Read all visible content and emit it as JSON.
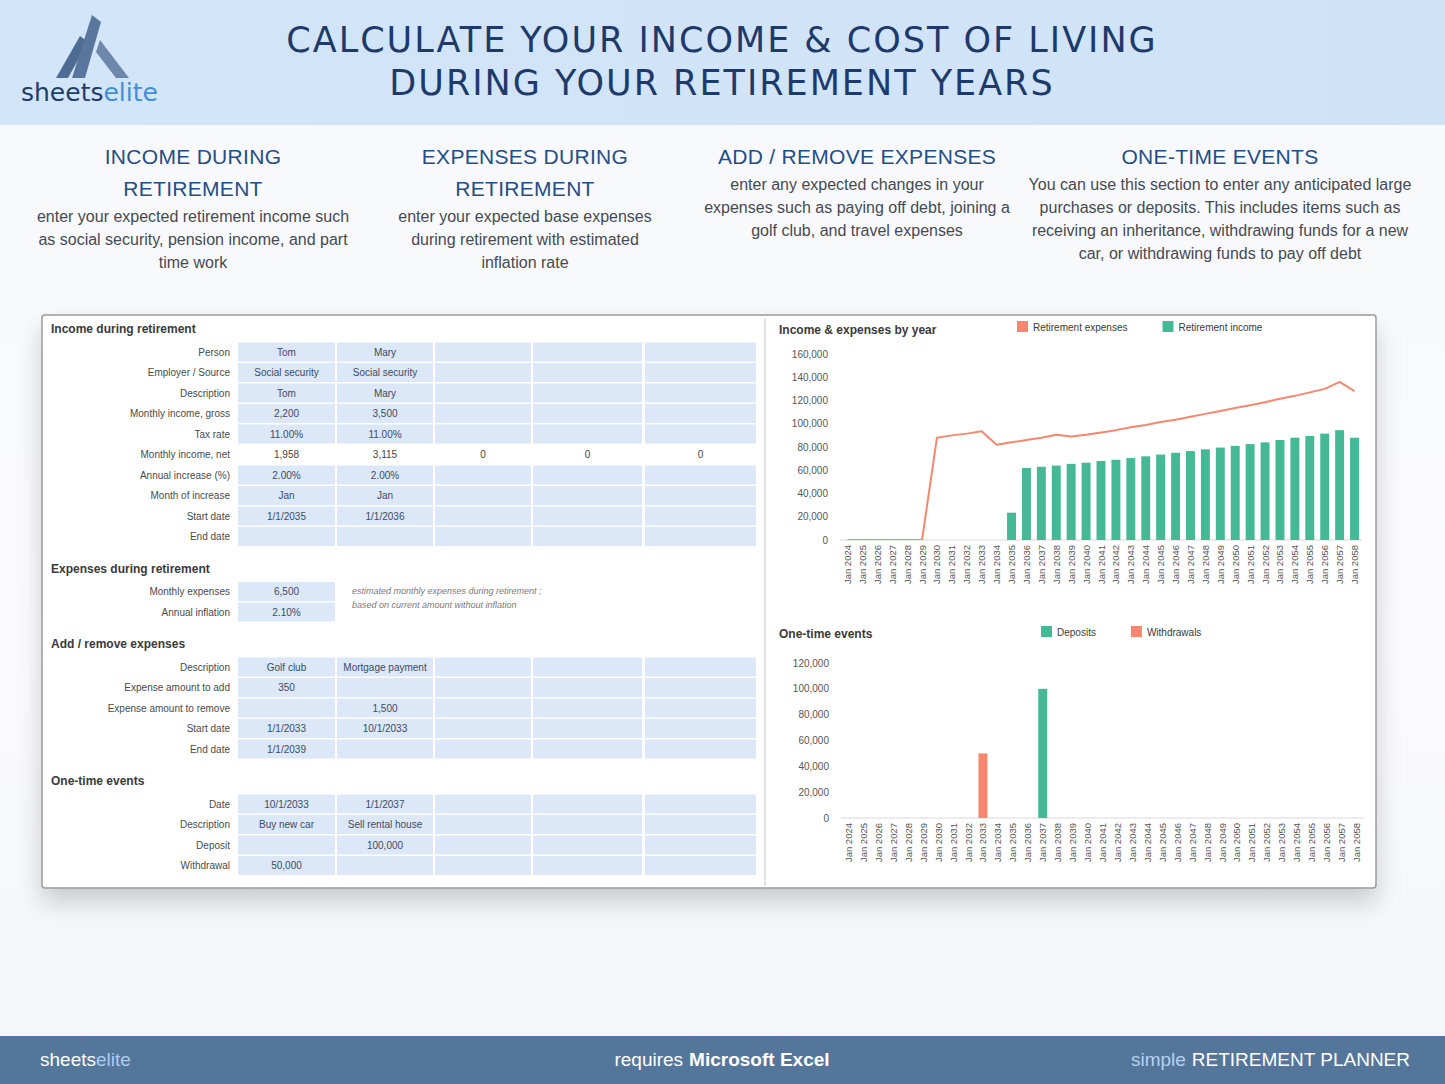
{
  "header": {
    "brand": {
      "first": "sheets",
      "second": "elite"
    },
    "title": [
      "CALCULATE YOUR INCOME & COST OF LIVING",
      "DURING YOUR RETIREMENT YEARS"
    ]
  },
  "features": [
    {
      "title": "INCOME DURING RETIREMENT",
      "text": "enter your expected retirement income such as social security, pension income, and part time work"
    },
    {
      "title": "EXPENSES DURING RETIREMENT",
      "text": "enter your expected base expenses during retirement with estimated inflation rate"
    },
    {
      "title": "ADD / REMOVE EXPENSES",
      "text": "enter any expected changes in your expenses such as paying off debt, joining a golf club, and travel expenses"
    },
    {
      "title": "ONE-TIME EVENTS",
      "text": "You can use this section to enter any anticipated large purchases or deposits. This includes items such as receiving an inheritance, withdrawing funds for a new car, or withdrawing funds to pay off debt"
    }
  ],
  "sheet": {
    "sections": [
      {
        "title": "Income during retirement",
        "rows": [
          {
            "label": "Person",
            "cells": [
              "Tom",
              "Mary",
              null,
              null,
              null
            ]
          },
          {
            "label": "Employer / Source",
            "cells": [
              "Social security",
              "Social security",
              null,
              null,
              null
            ]
          },
          {
            "label": "Description",
            "cells": [
              "Tom",
              "Mary",
              null,
              null,
              null
            ]
          },
          {
            "label": "Monthly income, gross",
            "cells": [
              "2,200",
              "3,500",
              null,
              null,
              null
            ]
          },
          {
            "label": "Tax rate",
            "cells": [
              "11.00%",
              "11.00%",
              null,
              null,
              null
            ]
          },
          {
            "label": "Monthly income, net",
            "computed": true,
            "cells": [
              "1,958",
              "3,115",
              "0",
              "0",
              "0"
            ]
          },
          {
            "label": "Annual increase (%)",
            "cells": [
              "2.00%",
              "2.00%",
              null,
              null,
              null
            ]
          },
          {
            "label": "Month of increase",
            "cells": [
              "Jan",
              "Jan",
              null,
              null,
              null
            ]
          },
          {
            "label": "Start date",
            "cells": [
              "1/1/2035",
              "1/1/2036",
              null,
              null,
              null
            ]
          },
          {
            "label": "End date",
            "cells": [
              null,
              null,
              null,
              null,
              null
            ]
          }
        ]
      },
      {
        "title": "Expenses during retirement",
        "note": [
          "estimated monthly expenses during retirement ;",
          "based on current amount without inflation"
        ],
        "rows": [
          {
            "label": "Monthly expenses",
            "cells": [
              "6,500"
            ]
          },
          {
            "label": "Annual inflation",
            "cells": [
              "2.10%"
            ]
          }
        ]
      },
      {
        "title": "Add / remove expenses",
        "rows": [
          {
            "label": "Description",
            "cells": [
              "Golf club",
              "Mortgage payment",
              null,
              null,
              null
            ]
          },
          {
            "label": "Expense amount to add",
            "cells": [
              "350",
              null,
              null,
              null,
              null
            ]
          },
          {
            "label": "Expense amount to remove",
            "cells": [
              null,
              "1,500",
              null,
              null,
              null
            ]
          },
          {
            "label": "Start date",
            "cells": [
              "1/1/2033",
              "10/1/2033",
              null,
              null,
              null
            ]
          },
          {
            "label": "End date",
            "cells": [
              "1/1/2039",
              null,
              null,
              null,
              null
            ]
          }
        ]
      },
      {
        "title": "One-time events",
        "rows": [
          {
            "label": "Date",
            "cells": [
              "10/1/2033",
              "1/1/2037",
              null,
              null,
              null
            ]
          },
          {
            "label": "Description",
            "cells": [
              "Buy new car",
              "Sell rental house",
              null,
              null,
              null
            ]
          },
          {
            "label": "Deposit",
            "cells": [
              null,
              "100,000",
              null,
              null,
              null
            ]
          },
          {
            "label": "Withdrawal",
            "cells": [
              "50,000",
              null,
              null,
              null,
              null
            ]
          }
        ]
      }
    ]
  },
  "chart_data": [
    {
      "type": "bar",
      "title": "Income & expenses by year",
      "categories": [
        "Jan 2024",
        "Jan 2025",
        "Jan 2026",
        "Jan 2027",
        "Jan 2028",
        "Jan 2029",
        "Jan 2030",
        "Jan 2031",
        "Jan 2032",
        "Jan 2033",
        "Jan 2034",
        "Jan 2035",
        "Jan 2036",
        "Jan 2037",
        "Jan 2038",
        "Jan 2039",
        "Jan 2040",
        "Jan 2041",
        "Jan 2042",
        "Jan 2043",
        "Jan 2044",
        "Jan 2045",
        "Jan 2046",
        "Jan 2047",
        "Jan 2048",
        "Jan 2049",
        "Jan 2050",
        "Jan 2051",
        "Jan 2052",
        "Jan 2053",
        "Jan 2054",
        "Jan 2055",
        "Jan 2056",
        "Jan 2057",
        "Jan 2058"
      ],
      "series": [
        {
          "name": "Retirement expenses",
          "type": "line",
          "color": "#f6876f",
          "values": [
            0,
            0,
            0,
            0,
            0,
            0,
            88000,
            90000,
            91500,
            93500,
            82000,
            84000,
            86000,
            88000,
            90500,
            89000,
            90500,
            92500,
            94500,
            97000,
            99000,
            101500,
            103500,
            106000,
            108500,
            111000,
            113500,
            116000,
            118500,
            121500,
            124000,
            127000,
            130000,
            136000,
            128000
          ]
        },
        {
          "name": "Retirement income",
          "type": "bar",
          "color": "#45b995",
          "values": [
            0,
            0,
            0,
            0,
            0,
            0,
            0,
            0,
            0,
            0,
            0,
            23500,
            62000,
            63000,
            64000,
            65500,
            66500,
            68000,
            69000,
            70500,
            72000,
            73500,
            75000,
            76500,
            78000,
            79500,
            81000,
            82500,
            84000,
            86000,
            88000,
            89500,
            91500,
            94500,
            88000
          ]
        }
      ],
      "ylim": [
        0,
        160000
      ],
      "yticks": [
        0,
        {
          "value": 20000,
          "label": "20,000"
        },
        {
          "value": 40000,
          "label": "40,000"
        },
        {
          "value": 60000,
          "label": "60,000"
        },
        {
          "value": 80000,
          "label": "80,000"
        },
        {
          "value": 100000,
          "label": "100,000"
        },
        {
          "value": 120000,
          "label": "120,000"
        },
        {
          "value": 140000,
          "label": "140,000"
        },
        {
          "value": 160000,
          "label": "160,000"
        }
      ],
      "grid": false,
      "legend": "top"
    },
    {
      "type": "bar",
      "title": "One-time events",
      "categories": [
        "Jan 2024",
        "Jan 2025",
        "Jan 2026",
        "Jan 2027",
        "Jan 2028",
        "Jan 2029",
        "Jan 2030",
        "Jan 2031",
        "Jan 2032",
        "Jan 2033",
        "Jan 2034",
        "Jan 2035",
        "Jan 2036",
        "Jan 2037",
        "Jan 2038",
        "Jan 2039",
        "Jan 2040",
        "Jan 2041",
        "Jan 2042",
        "Jan 2043",
        "Jan 2044",
        "Jan 2045",
        "Jan 2046",
        "Jan 2047",
        "Jan 2048",
        "Jan 2049",
        "Jan 2050",
        "Jan 2051",
        "Jan 2052",
        "Jan 2053",
        "Jan 2054",
        "Jan 2055",
        "Jan 2056",
        "Jan 2057",
        "Jan 2058"
      ],
      "series": [
        {
          "name": "Deposits",
          "color": "#45b995",
          "values": [
            0,
            0,
            0,
            0,
            0,
            0,
            0,
            0,
            0,
            0,
            0,
            0,
            0,
            100000,
            0,
            0,
            0,
            0,
            0,
            0,
            0,
            0,
            0,
            0,
            0,
            0,
            0,
            0,
            0,
            0,
            0,
            0,
            0,
            0,
            0
          ]
        },
        {
          "name": "Withdrawals",
          "color": "#f6876f",
          "values": [
            0,
            0,
            0,
            0,
            0,
            0,
            0,
            0,
            0,
            50000,
            0,
            0,
            0,
            0,
            0,
            0,
            0,
            0,
            0,
            0,
            0,
            0,
            0,
            0,
            0,
            0,
            0,
            0,
            0,
            0,
            0,
            0,
            0,
            0,
            0
          ]
        }
      ],
      "ylim": [
        0,
        120000
      ],
      "yticks": [
        0,
        {
          "value": 20000,
          "label": "20,000"
        },
        {
          "value": 40000,
          "label": "40,000"
        },
        {
          "value": 60000,
          "label": "60,000"
        },
        {
          "value": 80000,
          "label": "80,000"
        },
        {
          "value": 100000,
          "label": "100,000"
        },
        {
          "value": 120000,
          "label": "120,000"
        }
      ],
      "grid": false,
      "legend": "top"
    }
  ],
  "footer": {
    "brand": {
      "first": "sheets",
      "second": "elite"
    },
    "requires": {
      "text": "requires",
      "bold": "Microsoft Excel"
    },
    "product": {
      "light": "simple",
      "strong": "RETIREMENT PLANNER"
    }
  }
}
